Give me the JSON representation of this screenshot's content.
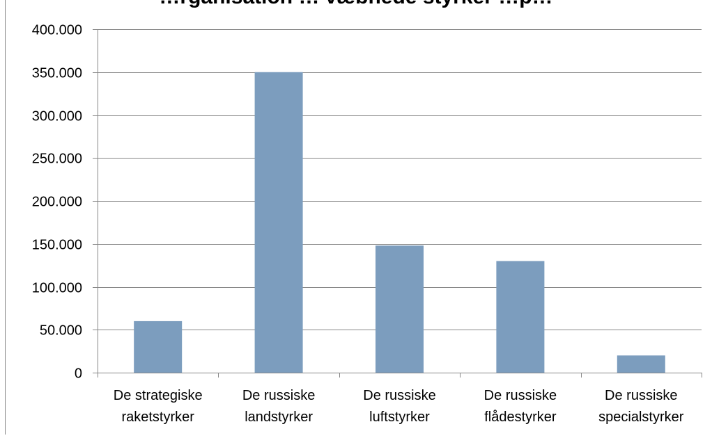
{
  "chart_data": {
    "type": "bar",
    "title": "…rganisation … væbnede styrker …p…",
    "xlabel": "",
    "ylabel": "",
    "categories": [
      [
        "De strategiske",
        "raketstyrker"
      ],
      [
        "De russiske",
        "landstyrker"
      ],
      [
        "De russiske",
        "luftstyrker"
      ],
      [
        "De russiske",
        "flådestyrker"
      ],
      [
        "De russiske",
        "specialstyrker"
      ]
    ],
    "values": [
      60000,
      350000,
      148000,
      130000,
      20000
    ],
    "ylim": [
      0,
      400000
    ],
    "yticks": [
      0,
      50000,
      100000,
      150000,
      200000,
      250000,
      300000,
      350000,
      400000
    ],
    "ytick_labels": [
      "0",
      "50.000",
      "100.000",
      "150.000",
      "200.000",
      "250.000",
      "300.000",
      "350.000",
      "400.000"
    ],
    "grid": true,
    "legend": "none",
    "colors": {
      "bar": "#7c9dbe",
      "grid": "#868686",
      "axis": "#868686"
    }
  }
}
